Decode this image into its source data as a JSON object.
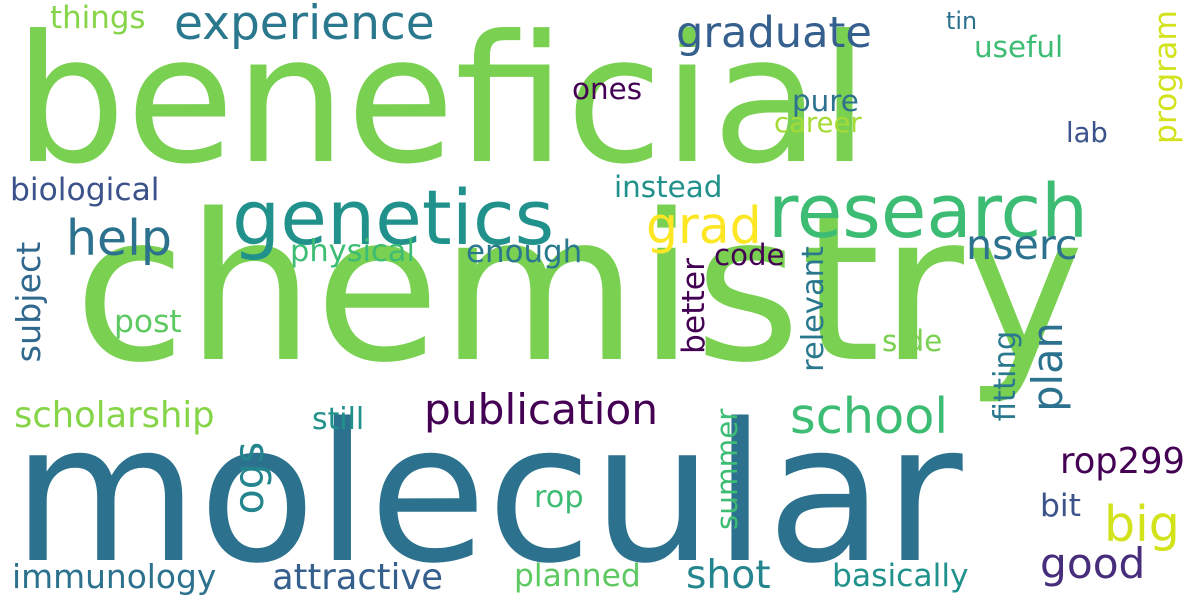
{
  "words": [
    {
      "text": "beneficial",
      "color": "#7ad151"
    },
    {
      "text": "chemistry",
      "color": "#7ad151"
    },
    {
      "text": "molecular",
      "color": "#2c728e"
    },
    {
      "text": "genetics",
      "color": "#21918c"
    },
    {
      "text": "research",
      "color": "#3dbc74"
    },
    {
      "text": "experience",
      "color": "#2a788e"
    },
    {
      "text": "graduate",
      "color": "#355f8d"
    },
    {
      "text": "school",
      "color": "#3dbc74"
    },
    {
      "text": "publication",
      "color": "#440154"
    },
    {
      "text": "help",
      "color": "#2c728e"
    },
    {
      "text": "grad",
      "color": "#fde725"
    },
    {
      "text": "big",
      "color": "#d2e21b"
    },
    {
      "text": "good",
      "color": "#472d7b"
    },
    {
      "text": "shot",
      "color": "#25858e"
    },
    {
      "text": "attractive",
      "color": "#355f8d"
    },
    {
      "text": "scholarship",
      "color": "#86d549"
    },
    {
      "text": "nserc",
      "color": "#2c728e"
    },
    {
      "text": "rop299",
      "color": "#440154"
    },
    {
      "text": "plan",
      "color": "#2c728e"
    },
    {
      "text": "ogs",
      "color": "#25858e"
    },
    {
      "text": "immunology",
      "color": "#2c728e"
    },
    {
      "text": "basically",
      "color": "#21918c"
    },
    {
      "text": "planned",
      "color": "#5ec962"
    },
    {
      "text": "biological",
      "color": "#3b528b"
    },
    {
      "text": "subject",
      "color": "#31688e"
    },
    {
      "text": "instead",
      "color": "#21918c"
    },
    {
      "text": "physical",
      "color": "#3dbc74"
    },
    {
      "text": "enough",
      "color": "#2a788e"
    },
    {
      "text": "post",
      "color": "#5ec962"
    },
    {
      "text": "program",
      "color": "#d2e21b"
    },
    {
      "text": "things",
      "color": "#86d549"
    },
    {
      "text": "tin",
      "color": "#2c728e"
    },
    {
      "text": "useful",
      "color": "#3dbc74"
    },
    {
      "text": "ones",
      "color": "#440154"
    },
    {
      "text": "pure",
      "color": "#2c728e"
    },
    {
      "text": "career",
      "color": "#a5db36"
    },
    {
      "text": "lab",
      "color": "#3b528b"
    },
    {
      "text": "code",
      "color": "#440154"
    },
    {
      "text": "better",
      "color": "#440154"
    },
    {
      "text": "relevant",
      "color": "#2a788e"
    },
    {
      "text": "side",
      "color": "#7ad151"
    },
    {
      "text": "fitting",
      "color": "#2a788e"
    },
    {
      "text": "still",
      "color": "#21918c"
    },
    {
      "text": "summer",
      "color": "#3dbc74"
    },
    {
      "text": "rop",
      "color": "#3dbc74"
    },
    {
      "text": "bit",
      "color": "#3b528b"
    }
  ]
}
